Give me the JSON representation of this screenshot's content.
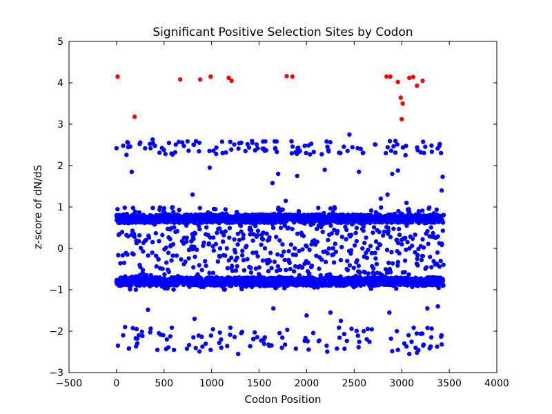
{
  "chart_data": {
    "type": "scatter",
    "title": "Significant Positive Selection Sites by Codon",
    "xlabel": "Codon Position",
    "ylabel": "z-score of dN/dS",
    "xlim": [
      -500,
      4000
    ],
    "ylim": [
      -3,
      5
    ],
    "x_ticks": [
      -500,
      0,
      500,
      1000,
      1500,
      2000,
      2500,
      3000,
      3500,
      4000
    ],
    "y_ticks": [
      -3,
      -2,
      -1,
      0,
      1,
      2,
      3,
      4,
      5
    ],
    "x_tick_labels": [
      "−500",
      "0",
      "500",
      "1000",
      "1500",
      "2000",
      "2500",
      "3000",
      "3500",
      "4000"
    ],
    "y_tick_labels": [
      "−3",
      "−2",
      "−1",
      "0",
      "1",
      "2",
      "3",
      "4",
      "5"
    ],
    "grid": false,
    "legend": "none",
    "codon_count": 3440,
    "series": [
      {
        "color": "#ff0000",
        "points": [
          [
            12,
            4.15
          ],
          [
            190,
            3.18
          ],
          [
            670,
            4.08
          ],
          [
            880,
            4.08
          ],
          [
            990,
            4.15
          ],
          [
            1180,
            4.12
          ],
          [
            1210,
            4.05
          ],
          [
            1790,
            4.16
          ],
          [
            1850,
            4.15
          ],
          [
            2840,
            4.15
          ],
          [
            2880,
            4.15
          ],
          [
            2960,
            4.02
          ],
          [
            2990,
            3.64
          ],
          [
            3010,
            3.5
          ],
          [
            3000,
            3.12
          ],
          [
            3080,
            4.12
          ],
          [
            3120,
            4.14
          ],
          [
            3160,
            3.93
          ],
          [
            3220,
            4.05
          ]
        ]
      },
      {
        "color": "#0000ff",
        "bands": [
          {
            "center": 0.72,
            "spread": 0.1,
            "density": 1.0
          },
          {
            "center": -0.8,
            "spread": 0.1,
            "density": 1.0
          },
          {
            "low": -1.0,
            "high": 1.0,
            "density": 0.6
          },
          {
            "low": 2.25,
            "high": 2.6,
            "density": 0.09
          },
          {
            "low": -2.5,
            "high": -1.9,
            "density": 0.08
          }
        ],
        "points": [
          [
            0,
            0.8
          ],
          [
            0,
            -0.8
          ],
          [
            0,
            2.42
          ],
          [
            120,
            2.55
          ],
          [
            380,
            2.63
          ],
          [
            2450,
            2.75
          ],
          [
            3400,
            2.52
          ],
          [
            3420,
            1.4
          ],
          [
            3430,
            1.73
          ],
          [
            980,
            1.95
          ],
          [
            1700,
            1.8
          ],
          [
            1640,
            1.58
          ],
          [
            160,
            1.85
          ],
          [
            800,
            1.3
          ],
          [
            1780,
            1.15
          ],
          [
            2850,
            1.3
          ],
          [
            3050,
            1.1
          ],
          [
            2780,
            1.2
          ],
          [
            2900,
            1.8
          ],
          [
            2960,
            1.88
          ],
          [
            3040,
            2.25
          ],
          [
            1900,
            1.75
          ],
          [
            2190,
            1.9
          ],
          [
            2550,
            1.85
          ],
          [
            130,
            -2.42
          ],
          [
            430,
            -2.45
          ],
          [
            990,
            -2.45
          ],
          [
            1280,
            -2.55
          ],
          [
            1740,
            -2.4
          ],
          [
            2210,
            -2.35
          ],
          [
            2960,
            -2.45
          ],
          [
            3080,
            -2.55
          ],
          [
            3160,
            -2.52
          ],
          [
            3420,
            -2.32
          ],
          [
            90,
            -1.9
          ],
          [
            330,
            -1.48
          ],
          [
            1650,
            -1.45
          ],
          [
            2000,
            -1.62
          ],
          [
            2870,
            -1.55
          ],
          [
            3270,
            -1.45
          ],
          [
            3380,
            -1.4
          ],
          [
            2360,
            -1.75
          ],
          [
            2250,
            -1.55
          ],
          [
            820,
            -1.7
          ],
          [
            70,
            -2.1
          ],
          [
            1100,
            -2.2
          ],
          [
            1560,
            -2.15
          ],
          [
            2600,
            -2.0
          ]
        ]
      }
    ]
  }
}
